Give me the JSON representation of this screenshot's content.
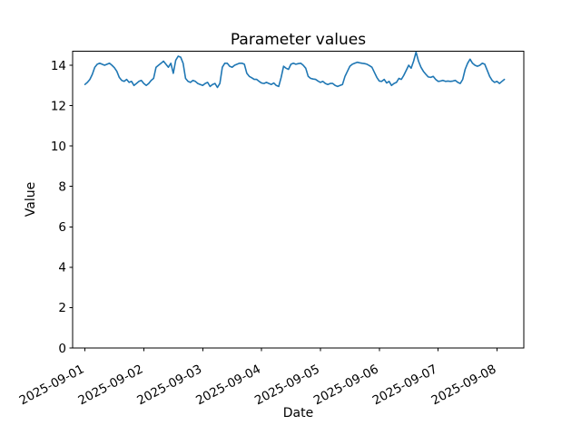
{
  "figure": {
    "title": "Parameter values",
    "xlabel": "Date",
    "ylabel": "Value"
  },
  "chart_data": {
    "type": "line",
    "title": "Parameter values",
    "xlabel": "Date",
    "ylabel": "Value",
    "grid": false,
    "legend_position": "none",
    "line_color": "#1f77b4",
    "axis_color": "#000000",
    "x_tick_labels": [
      "2025-09-01",
      "2025-09-02",
      "2025-09-03",
      "2025-09-04",
      "2025-09-05",
      "2025-09-06",
      "2025-09-07",
      "2025-09-08"
    ],
    "y_ticks": [
      0,
      2,
      4,
      6,
      8,
      10,
      12,
      14
    ],
    "ylim": [
      0,
      14.72
    ],
    "series": [
      {
        "x_start": "2025-09-01 00:00",
        "x_step_hours": 1,
        "values": [
          13.05,
          13.15,
          13.3,
          13.55,
          13.9,
          14.05,
          14.1,
          14.05,
          14.0,
          14.05,
          14.1,
          14.0,
          13.88,
          13.7,
          13.4,
          13.25,
          13.2,
          13.3,
          13.15,
          13.2,
          13.0,
          13.1,
          13.2,
          13.25,
          13.1,
          13.0,
          13.1,
          13.25,
          13.35,
          13.9,
          14.0,
          14.1,
          14.2,
          14.05,
          13.9,
          14.1,
          13.6,
          14.25,
          14.45,
          14.4,
          14.1,
          13.35,
          13.2,
          13.15,
          13.25,
          13.2,
          13.1,
          13.05,
          13.0,
          13.1,
          13.15,
          12.95,
          13.05,
          13.1,
          12.9,
          13.1,
          13.9,
          14.1,
          14.1,
          13.95,
          13.9,
          14.0,
          14.05,
          14.1,
          14.1,
          14.05,
          13.6,
          13.45,
          13.38,
          13.3,
          13.3,
          13.2,
          13.12,
          13.1,
          13.15,
          13.1,
          13.05,
          13.12,
          13.0,
          12.95,
          13.4,
          13.95,
          13.85,
          13.8,
          14.05,
          14.1,
          14.05,
          14.08,
          14.1,
          14.0,
          13.85,
          13.45,
          13.35,
          13.32,
          13.3,
          13.22,
          13.15,
          13.2,
          13.1,
          13.05,
          13.1,
          13.1,
          13.0,
          12.95,
          13.0,
          13.05,
          13.45,
          13.7,
          13.95,
          14.05,
          14.1,
          14.15,
          14.12,
          14.1,
          14.08,
          14.05,
          13.98,
          13.9,
          13.65,
          13.4,
          13.22,
          13.2,
          13.3,
          13.12,
          13.2,
          13.0,
          13.1,
          13.15,
          13.35,
          13.3,
          13.5,
          13.75,
          14.0,
          13.85,
          14.2,
          14.65,
          14.2,
          13.9,
          13.7,
          13.55,
          13.42,
          13.4,
          13.45,
          13.3,
          13.2,
          13.22,
          13.25,
          13.2,
          13.22,
          13.2,
          13.22,
          13.25,
          13.15,
          13.1,
          13.3,
          13.8,
          14.1,
          14.3,
          14.1,
          14.0,
          13.95,
          14.0,
          14.1,
          14.05,
          13.75,
          13.45,
          13.25,
          13.15,
          13.2,
          13.1,
          13.2,
          13.3
        ]
      }
    ]
  }
}
